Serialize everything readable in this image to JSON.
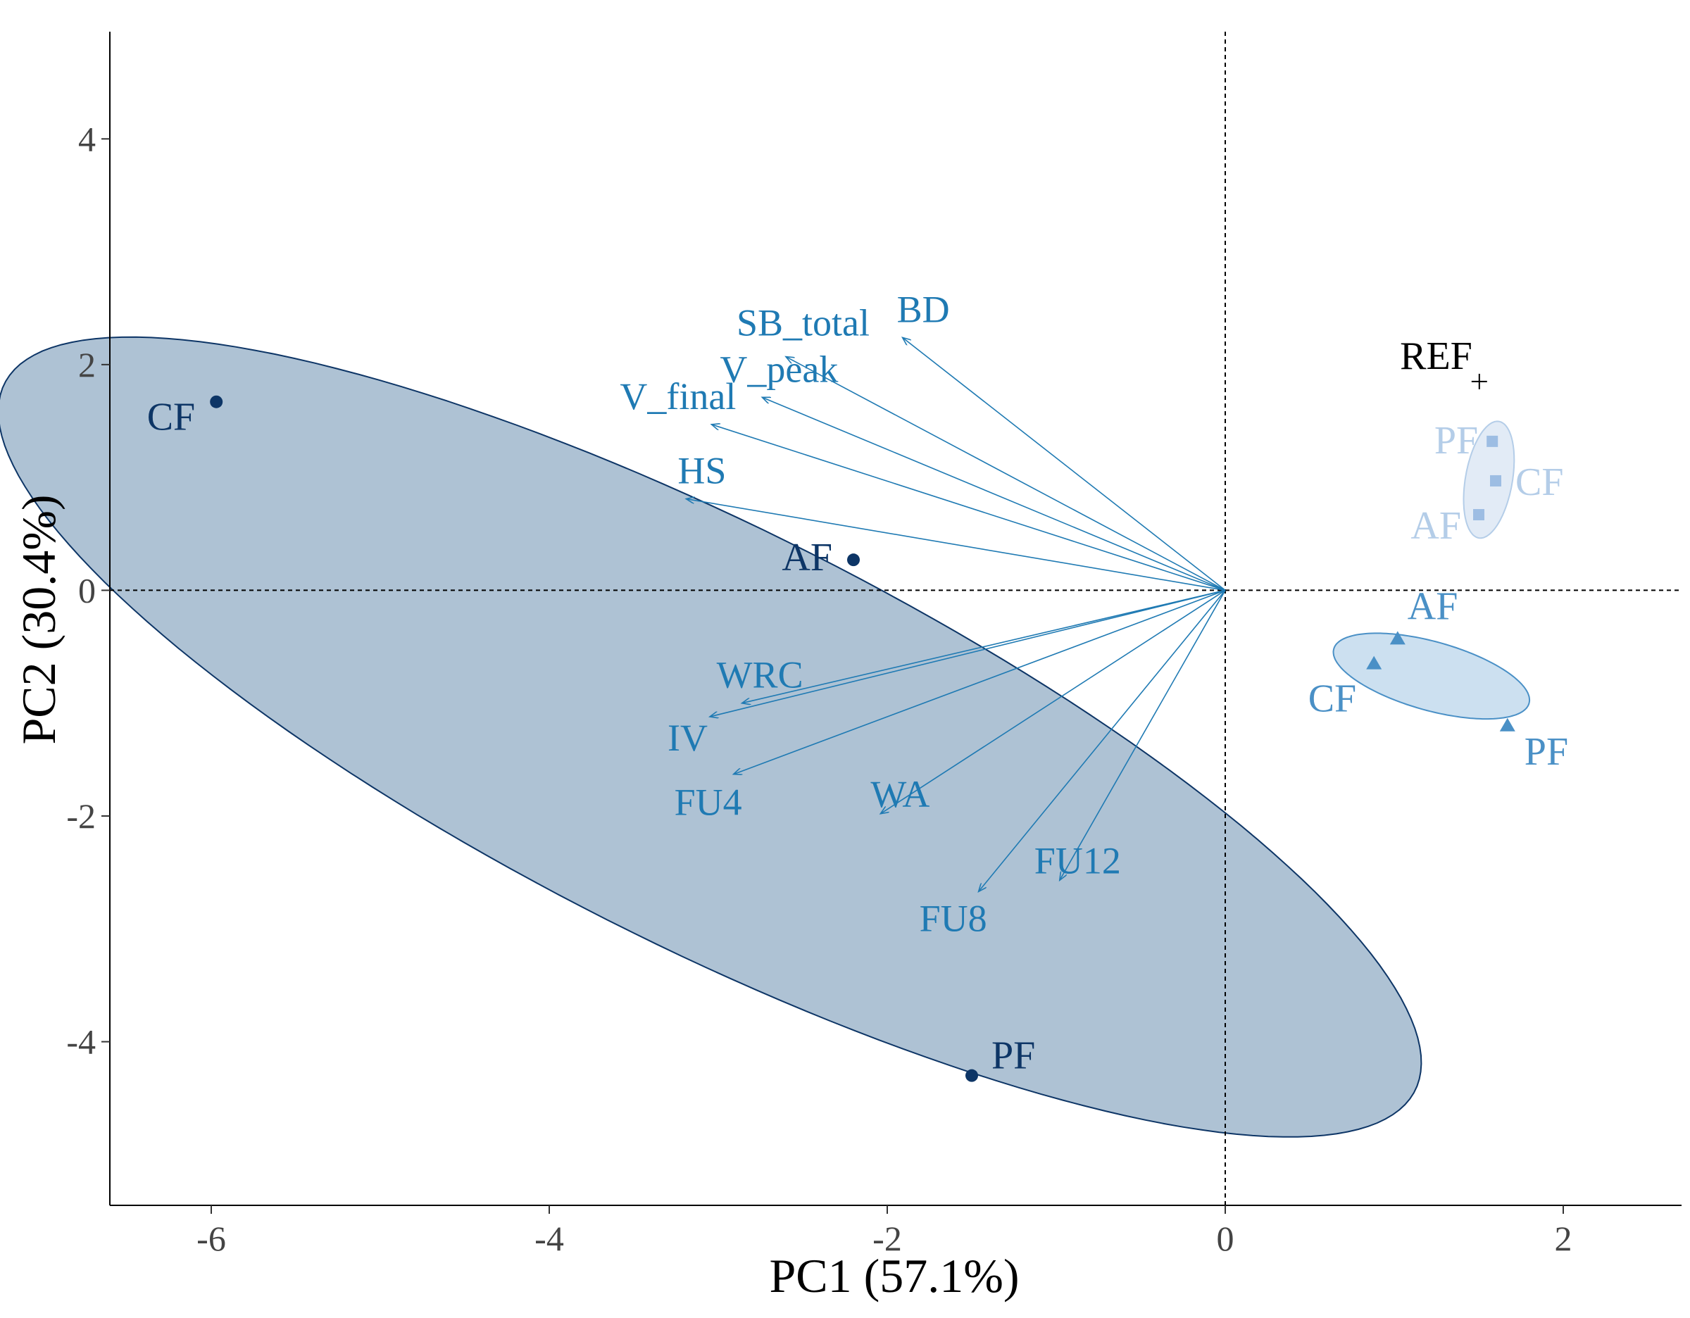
{
  "chart_data": {
    "type": "scatter",
    "subtype": "pca-biplot",
    "xlabel": "PC1 (57.1%)",
    "ylabel": "PC2 (30.4%)",
    "xlim": [
      -6.6,
      2.7
    ],
    "ylim": [
      -5.45,
      4.95
    ],
    "xticks": [
      -6,
      -4,
      -2,
      0,
      2
    ],
    "yticks": [
      -4,
      -2,
      0,
      2,
      4
    ],
    "reference_lines": {
      "x": 0,
      "y": 0,
      "style": "dashed"
    },
    "groups": [
      {
        "name": "group-1",
        "color": "#0d3566",
        "fill": "#aec2d4",
        "marker": "circle",
        "ellipse": {
          "center": [
            -3.05,
            -1.3
          ],
          "semi_major": 5.25,
          "semi_minor": 1.65,
          "angle_deg": -39
        },
        "points": [
          {
            "label": "CF",
            "x": -5.97,
            "y": 1.67
          },
          {
            "label": "AF",
            "x": -2.2,
            "y": 0.27
          },
          {
            "label": "PF",
            "x": -1.5,
            "y": -4.3
          }
        ]
      },
      {
        "name": "group-2",
        "color": "#b4cde8",
        "fill": "#e2ebf6",
        "marker": "square",
        "ellipse": {
          "center": [
            1.56,
            0.98
          ],
          "semi_major": 0.52,
          "semi_minor": 0.14,
          "angle_deg": 84
        },
        "points": [
          {
            "label": "PF",
            "x": 1.58,
            "y": 1.32
          },
          {
            "label": "CF",
            "x": 1.6,
            "y": 0.97
          },
          {
            "label": "AF",
            "x": 1.5,
            "y": 0.67
          }
        ]
      },
      {
        "name": "group-3",
        "color": "#4a90c6",
        "fill": "#cce0f0",
        "marker": "triangle",
        "ellipse": {
          "center": [
            1.22,
            -0.76
          ],
          "semi_major": 0.63,
          "semi_minor": 0.29,
          "angle_deg": -26
        },
        "points": [
          {
            "label": "AF",
            "x": 1.02,
            "y": -0.43
          },
          {
            "label": "CF",
            "x": 0.88,
            "y": -0.65
          },
          {
            "label": "PF",
            "x": 1.67,
            "y": -1.2
          }
        ]
      }
    ],
    "reference_point": {
      "label": "REF",
      "x": 1.42,
      "y": 1.85,
      "marker": "plus",
      "color": "#000000"
    },
    "loadings_color": "#1f7ab3",
    "loadings": [
      {
        "name": "BD",
        "x": -1.91,
        "y": 2.24
      },
      {
        "name": "SB_total",
        "x": -2.6,
        "y": 2.07
      },
      {
        "name": "V_peak",
        "x": -2.74,
        "y": 1.71
      },
      {
        "name": "V_final",
        "x": -3.04,
        "y": 1.47
      },
      {
        "name": "HS",
        "x": -3.19,
        "y": 0.81
      },
      {
        "name": "WRC",
        "x": -2.86,
        "y": -1.0
      },
      {
        "name": "IV",
        "x": -3.05,
        "y": -1.12
      },
      {
        "name": "FU4",
        "x": -2.91,
        "y": -1.63
      },
      {
        "name": "WA",
        "x": -2.04,
        "y": -1.98
      },
      {
        "name": "FU8",
        "x": -1.46,
        "y": -2.67
      },
      {
        "name": "FU12",
        "x": -0.98,
        "y": -2.57
      }
    ]
  }
}
